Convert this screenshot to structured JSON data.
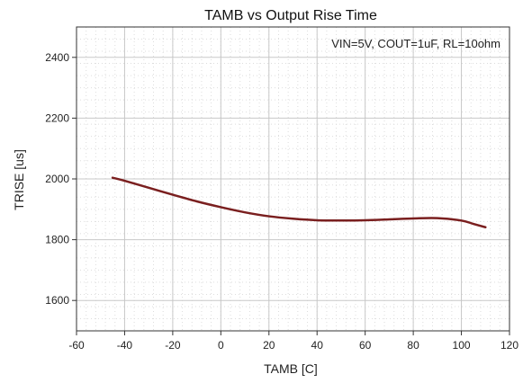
{
  "chart_data": {
    "type": "line",
    "title": "TAMB vs Output Rise Time",
    "xlabel": "TAMB [C]",
    "ylabel": "TRISE [us]",
    "annotation": "VIN=5V, COUT=1uF, RL=10ohm",
    "xlim": [
      -60,
      120
    ],
    "ylim": [
      1500,
      2500
    ],
    "xticks": [
      -60,
      -40,
      -20,
      0,
      20,
      40,
      60,
      80,
      100,
      120
    ],
    "yticks": [
      1600,
      1800,
      2000,
      2200,
      2400
    ],
    "grid": true,
    "legend": "none",
    "series": [
      {
        "color": "#7a1f1f",
        "x": [
          -45,
          -40,
          -30,
          -20,
          -10,
          0,
          10,
          20,
          30,
          40,
          50,
          60,
          70,
          80,
          90,
          100,
          105,
          110
        ],
        "y": [
          2004,
          1994,
          1971,
          1948,
          1926,
          1907,
          1890,
          1877,
          1869,
          1864,
          1863,
          1864,
          1867,
          1870,
          1871,
          1863,
          1852,
          1841
        ]
      }
    ]
  }
}
